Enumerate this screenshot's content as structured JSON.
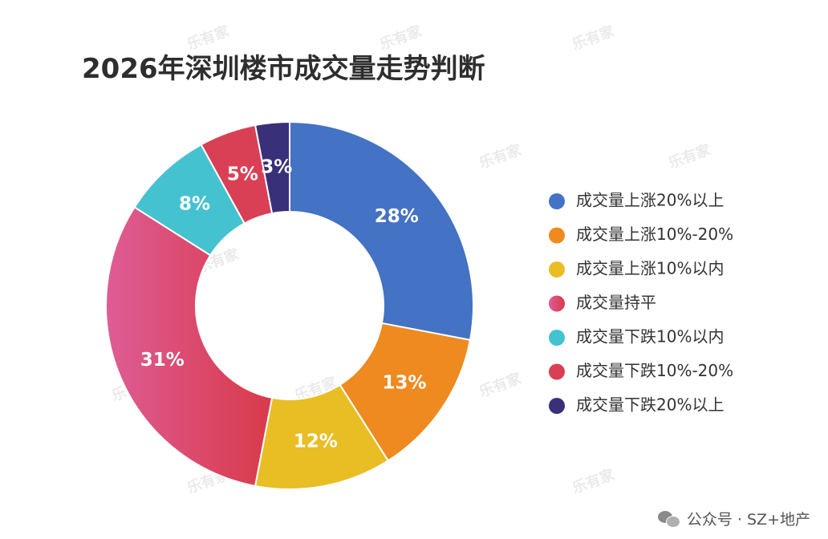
{
  "chart_data": {
    "type": "pie",
    "title": "2026年深圳楼市成交量走势判断",
    "categories": [
      "成交量上涨20%以上",
      "成交量上涨10%-20%",
      "成交量上涨10%以内",
      "成交量持平",
      "成交量下跌10%以内",
      "成交量下跌10%-20%",
      "成交量下跌20%以上"
    ],
    "values": [
      28,
      13,
      12,
      31,
      8,
      5,
      3
    ],
    "value_labels": [
      "28%",
      "13%",
      "12%",
      "31%",
      "8%",
      "5%",
      "3%"
    ],
    "colors": [
      "#4472c4",
      "#ee8a1f",
      "#e9bd24",
      "#d9476a",
      "#45c2d0",
      "#d94055",
      "#39307a"
    ],
    "donut": true,
    "legend_position": "right"
  },
  "watermark": "乐有家",
  "footer": {
    "text": "公众号 · SZ+地产"
  }
}
